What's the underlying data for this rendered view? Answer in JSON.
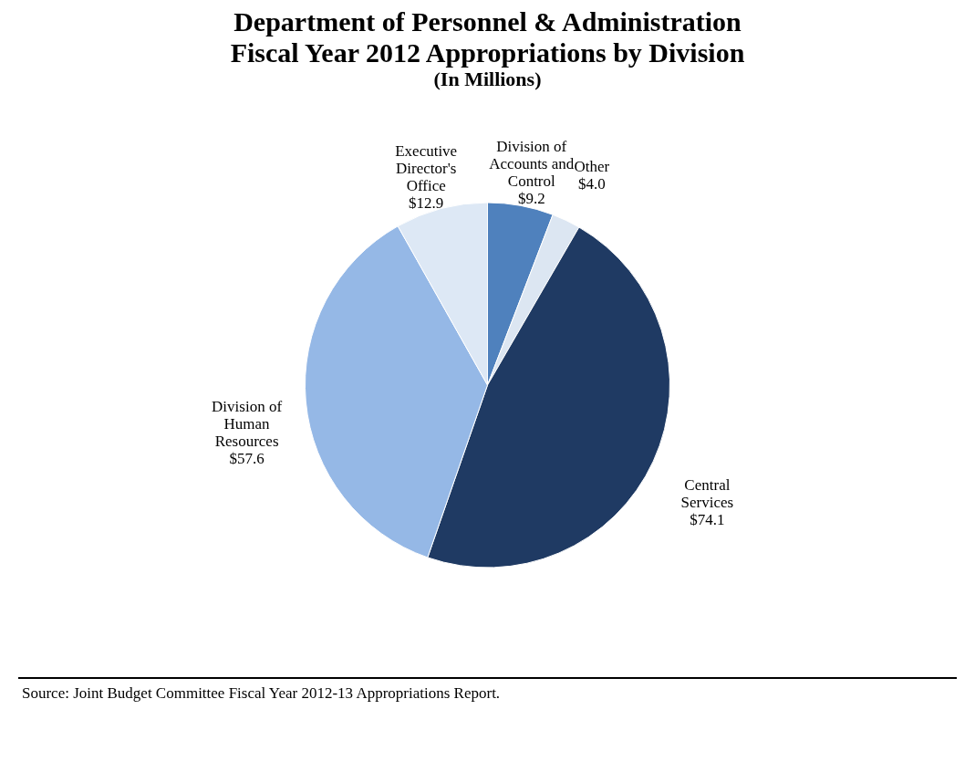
{
  "chart_data": {
    "type": "pie",
    "title": "Department of Personnel & Administration\nFiscal Year 2012 Appropriations by Division",
    "subtitle": "(In Millions)",
    "categories": [
      "Division of Accounts and Control",
      "Other",
      "Central Services",
      "Division of Human Resources",
      "Executive Director's Office"
    ],
    "values": [
      9.2,
      4.0,
      74.1,
      57.6,
      12.9
    ],
    "value_labels": [
      "$9.2",
      "$4.0",
      "$74.1",
      "$57.6",
      "$12.9"
    ],
    "colors": [
      "#4f81bd",
      "#dce6f2",
      "#1f3a63",
      "#95b8e6",
      "#dde8f5"
    ],
    "legend": false,
    "annotations": [
      "Source:  Joint Budget Committee Fiscal Year 2012-13 Appropriations Report."
    ]
  }
}
